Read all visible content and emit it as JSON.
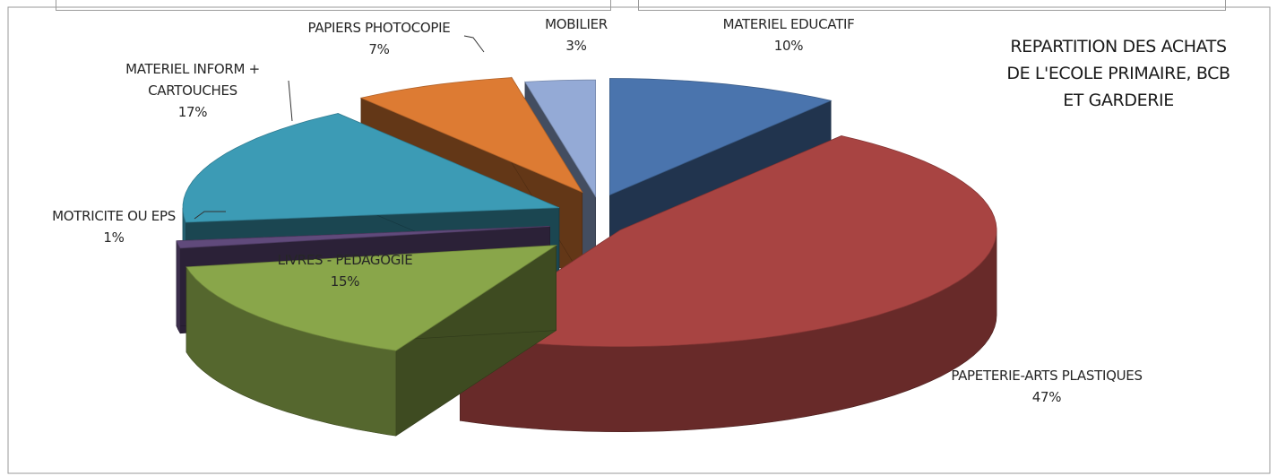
{
  "chart_data": {
    "type": "pie",
    "title_lines": [
      "REPARTITION DES ACHATS",
      "DE L'ECOLE PRIMAIRE, BCB",
      "ET GARDERIE"
    ],
    "slices": [
      {
        "label": "MATERIEL EDUCATIF",
        "value": 10,
        "value_label": "10%",
        "color": "#4a74ad"
      },
      {
        "label": "PAPETERIE-ARTS PLASTIQUES",
        "value": 47,
        "value_label": "47%",
        "color": "#a84442"
      },
      {
        "label": "LIVRES - PEDAGOGIE",
        "value": 15,
        "value_label": "15%",
        "color": "#89a64a"
      },
      {
        "label": "MOTRICITE OU EPS",
        "value": 1,
        "value_label": "1%",
        "color": "#604a7b"
      },
      {
        "label": "MATERIEL INFORM +\nCARTOUCHES",
        "value": 17,
        "value_label": "17%",
        "color": "#3c9bb5"
      },
      {
        "label": "PAPIERS PHOTOCOPIE",
        "value": 7,
        "value_label": "7%",
        "color": "#dd7b33"
      },
      {
        "label": "MOBILIER",
        "value": 3,
        "value_label": "3%",
        "color": "#94aad6"
      }
    ]
  }
}
